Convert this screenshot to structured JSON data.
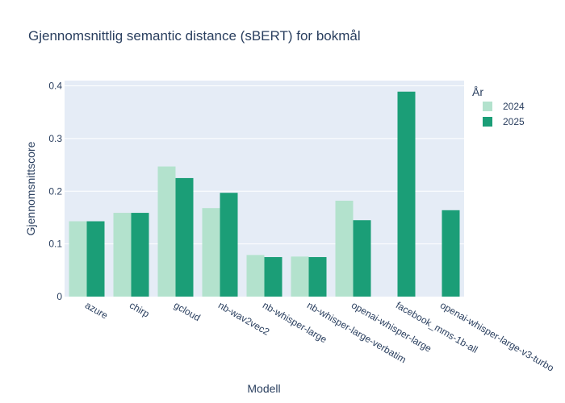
{
  "chart_data": {
    "type": "bar",
    "title": "Gjennomsnittlig semantic distance (sBERT) for bokmål",
    "xlabel": "Modell",
    "ylabel": "Gjennomsnittscore",
    "ylim": [
      0,
      0.41
    ],
    "yticks": [
      "0",
      "0.1",
      "0.2",
      "0.3",
      "0.4"
    ],
    "ytick_values": [
      0,
      0.1,
      0.2,
      0.3,
      0.4
    ],
    "grid": true,
    "legend_title": "År",
    "legend_position": "top-right",
    "categories": [
      "azure",
      "chirp",
      "gcloud",
      "nb-wav2vec2",
      "nb-whisper-large",
      "nb-whisper-large-verbatim",
      "openai-whisper-large",
      "facebook_mms-1b-all",
      "openai-whisper-large-v3-turbo"
    ],
    "series": [
      {
        "name": "2024",
        "color": "#b3e2cd",
        "values": [
          0.143,
          0.159,
          0.247,
          0.168,
          0.079,
          0.076,
          0.182,
          null,
          null
        ]
      },
      {
        "name": "2025",
        "color": "#1b9e77",
        "values": [
          0.143,
          0.159,
          0.225,
          0.197,
          0.075,
          0.075,
          0.145,
          0.389,
          0.164
        ]
      }
    ]
  }
}
